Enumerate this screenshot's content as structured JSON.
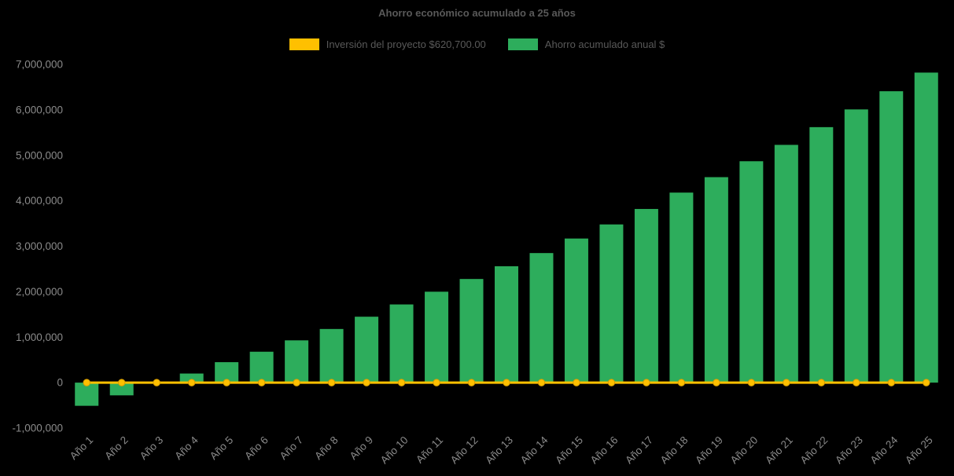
{
  "title": "Ahorro económico acumulado a 25 años",
  "legend": {
    "investment": {
      "label": "Inversión del proyecto $620,700.00",
      "color": "#FFC000"
    },
    "savings": {
      "label": "Ahorro acumulado anual $",
      "color": "#2DAD5C"
    }
  },
  "colors": {
    "background": "#000000",
    "title_text": "#595959",
    "legend_text": "#595959",
    "tick_text": "#8A8A8A",
    "bar": "#2DAD5C",
    "line": "#FFC000"
  },
  "chart_data": {
    "type": "bar",
    "title": "Ahorro económico acumulado a 25 años",
    "categories": [
      "Año 1",
      "Año 2",
      "Año 3",
      "Año 4",
      "Año 5",
      "Año 6",
      "Año 7",
      "Año 8",
      "Año 9",
      "Año 10",
      "Año 11",
      "Año 12",
      "Año 13",
      "Año 14",
      "Año 15",
      "Año 16",
      "Año 17",
      "Año 18",
      "Año 19",
      "Año 20",
      "Año 21",
      "Año 22",
      "Año 23",
      "Año 24",
      "Año 25"
    ],
    "series": [
      {
        "name": "Ahorro acumulado anual $",
        "type": "bar",
        "color": "#2DAD5C",
        "values": [
          -510000,
          -280000,
          0,
          200000,
          450000,
          680000,
          930000,
          1180000,
          1450000,
          1720000,
          2000000,
          2280000,
          2560000,
          2850000,
          3170000,
          3480000,
          3820000,
          4180000,
          4520000,
          4870000,
          5230000,
          5620000,
          6010000,
          6410000,
          6820000
        ]
      },
      {
        "name": "Inversión del proyecto $620,700.00",
        "type": "line",
        "color": "#FFC000",
        "constant_value": 0,
        "markers": true
      }
    ],
    "ylim": [
      -1000000,
      7000000
    ],
    "yticks": [
      -1000000,
      0,
      1000000,
      2000000,
      3000000,
      4000000,
      5000000,
      6000000,
      7000000
    ],
    "ytick_format": "thousands-comma",
    "xlabel_rotation": -45,
    "grid": false,
    "legend_position": "top"
  }
}
